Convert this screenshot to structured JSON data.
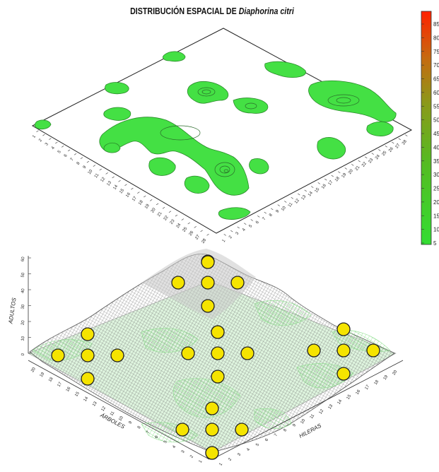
{
  "chart_data": [
    {
      "type": "contour",
      "title_prefix": "DISTRIBUCIÓN ESPACIAL DE ",
      "title_species": "Diaphorina citri",
      "left_axis_ticks": [
        "1",
        "2",
        "3",
        "4",
        "5",
        "6",
        "7",
        "8",
        "9",
        "10",
        "11",
        "12",
        "13",
        "14",
        "15",
        "16",
        "17",
        "18",
        "19",
        "20",
        "21",
        "22",
        "23",
        "24",
        "25",
        "26",
        "27",
        "28"
      ],
      "right_axis_ticks": [
        "1",
        "2",
        "3",
        "4",
        "5",
        "6",
        "7",
        "8",
        "9",
        "10",
        "11",
        "12",
        "13",
        "14",
        "15",
        "16",
        "17",
        "18",
        "19",
        "20",
        "21",
        "22",
        "23",
        "24",
        "25",
        "26",
        "27",
        "28"
      ],
      "colorbar": {
        "labels": [
          "5",
          "10",
          "15",
          "20",
          "25",
          "30",
          "35",
          "40",
          "45",
          "50",
          "55",
          "60",
          "65",
          "70",
          "75",
          "80",
          "85"
        ],
        "low_color": "#33dd33",
        "high_color": "#ff2200"
      }
    },
    {
      "type": "surface3d",
      "zlabel": "ADULTOS",
      "xlabel": "ÁRBOLES",
      "ylabel": "HILERAS",
      "z_ticks": [
        "0",
        "10",
        "20",
        "30",
        "40",
        "50",
        "60"
      ],
      "row_ticks": [
        "1",
        "2",
        "3",
        "4",
        "5",
        "6",
        "7",
        "8",
        "9",
        "10",
        "11",
        "12",
        "13",
        "14",
        "15",
        "16",
        "17",
        "18",
        "19",
        "20"
      ],
      "tree_ticks": [
        "1",
        "2",
        "3",
        "4",
        "5",
        "6",
        "7",
        "8",
        "9",
        "10",
        "11",
        "12",
        "13",
        "14",
        "15",
        "16",
        "17",
        "18",
        "19",
        "20"
      ],
      "marker_color": "#f5e400",
      "marker_count": 28
    }
  ]
}
